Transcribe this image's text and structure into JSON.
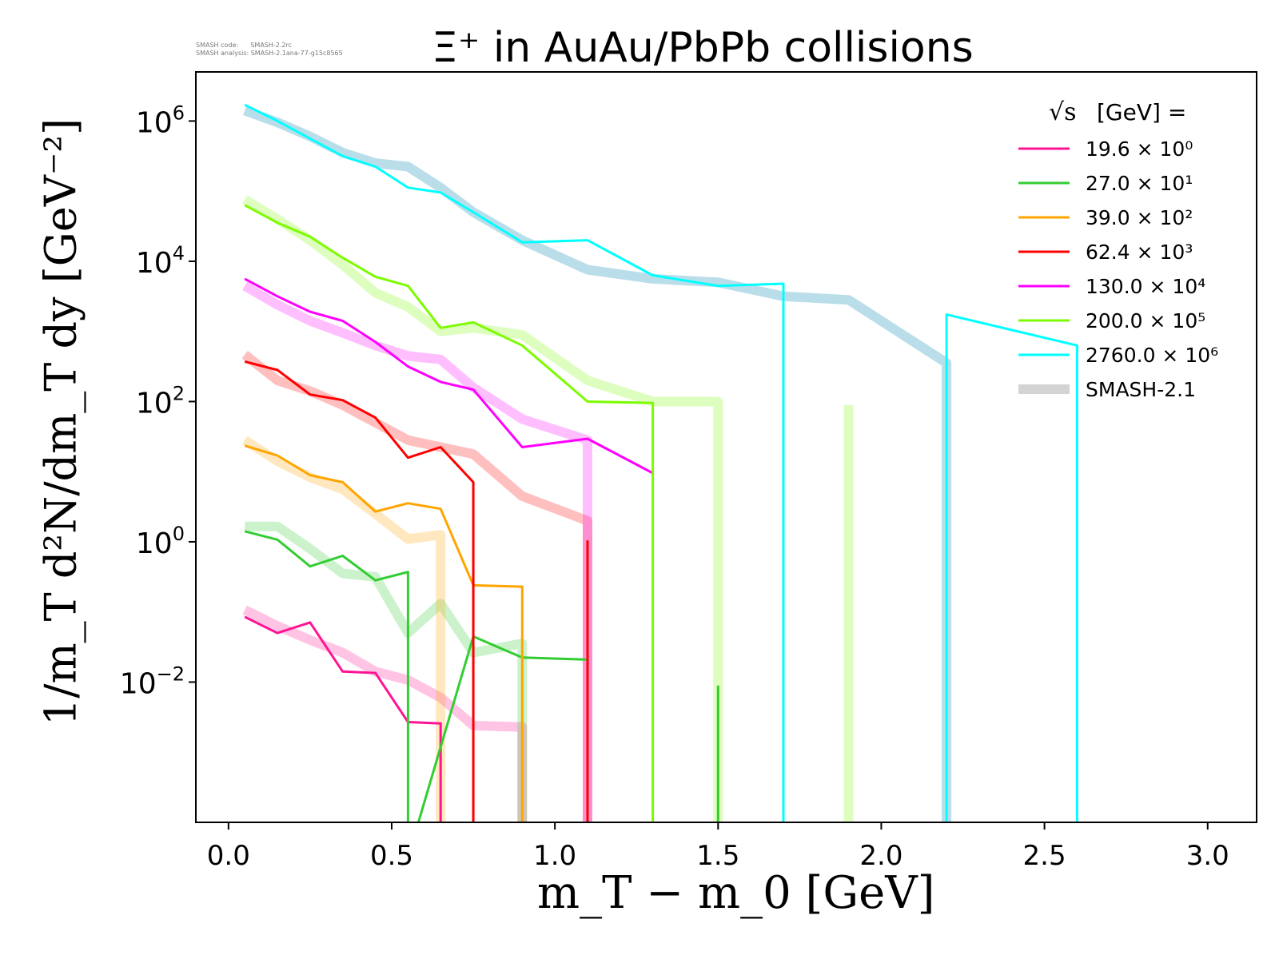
{
  "meta": {
    "line1": "SMASH code:      SMASH-2.2rc",
    "line2": "SMASH analysis: SMASH-2.1ana-77-g15c8565"
  },
  "chart_data": {
    "type": "line",
    "title": "Ξ⁺ in AuAu/PbPb collisions",
    "xlabel": "m_T − m_0 [GeV]",
    "ylabel": "1/m_T d²N/dm_T dy [GeV⁻²]",
    "xlim": [
      -0.1,
      3.15
    ],
    "ylim_log10": [
      -4.0,
      6.7
    ],
    "xticks": [
      "0.0",
      "0.5",
      "1.0",
      "1.5",
      "2.0",
      "2.5",
      "3.0"
    ],
    "yticks": [
      {
        "base": "10",
        "exp": "6",
        "value_log10": 6
      },
      {
        "base": "10",
        "exp": "4",
        "value_log10": 4
      },
      {
        "base": "10",
        "exp": "2",
        "value_log10": 2
      },
      {
        "base": "10",
        "exp": "0",
        "value_log10": 0
      },
      {
        "base": "10",
        "exp": "−2",
        "value_log10": -2
      }
    ],
    "log_y": true,
    "grid": false,
    "legend": {
      "position": "top-right",
      "title": "[GeV] =",
      "sqrt_symbol": "√s",
      "entries": [
        {
          "label": "19.6 × 10⁰",
          "color": "#ff1493"
        },
        {
          "label": "27.0 × 10¹",
          "color": "#32cd32"
        },
        {
          "label": "39.0 × 10²",
          "color": "#ffa500"
        },
        {
          "label": "62.4 × 10³",
          "color": "#ff0000"
        },
        {
          "label": "130.0 × 10⁴",
          "color": "#ff00ff"
        },
        {
          "label": "200.0 × 10⁵",
          "color": "#7cfc00"
        },
        {
          "label": "2760.0 × 10⁶",
          "color": "#00ffff"
        },
        {
          "label": "SMASH-2.1",
          "color": "#d3d3d3",
          "thick": true
        }
      ]
    },
    "series": [
      {
        "name": "19.6 × 10⁰",
        "color": "#ff1493",
        "x": [
          0.05,
          0.15,
          0.25,
          0.35,
          0.45,
          0.55,
          0.65,
          0.65
        ],
        "y": [
          -1.07,
          -1.3,
          -1.15,
          -1.85,
          -1.87,
          -2.57,
          -2.59,
          -4.5
        ]
      },
      {
        "name": "19.6 × 10⁰ SMASH-2.1",
        "color": "#ff1493",
        "smash": true,
        "x": [
          0.05,
          0.15,
          0.25,
          0.35,
          0.45,
          0.55,
          0.65,
          0.75,
          0.9,
          0.9
        ],
        "y": [
          -0.97,
          -1.2,
          -1.4,
          -1.58,
          -1.85,
          -1.97,
          -2.22,
          -2.62,
          -2.64,
          -4.5
        ]
      },
      {
        "name": "27.0 × 10¹",
        "color": "#32cd32",
        "x": [
          0.05,
          0.15,
          0.25,
          0.35,
          0.45,
          0.55,
          0.55,
          0.75,
          0.9,
          1.1
        ],
        "y": [
          0.15,
          0.03,
          -0.35,
          -0.2,
          -0.55,
          -0.43,
          -4.5,
          -1.35,
          -1.65,
          -1.68
        ]
      },
      {
        "name": "27.0 × 10¹ spike",
        "color": "#32cd32",
        "x": [
          1.5,
          1.5
        ],
        "y": [
          -4.5,
          -2.05
        ]
      },
      {
        "name": "27.0 × 10¹ SMASH-2.1",
        "color": "#32cd32",
        "smash": true,
        "x": [
          0.05,
          0.15,
          0.25,
          0.35,
          0.45,
          0.55,
          0.65,
          0.75,
          0.9,
          0.9
        ],
        "y": [
          0.22,
          0.22,
          -0.1,
          -0.45,
          -0.5,
          -1.3,
          -0.88,
          -1.58,
          -1.45,
          -4.5
        ]
      },
      {
        "name": "39.0 × 10²",
        "color": "#ffa500",
        "x": [
          0.05,
          0.15,
          0.25,
          0.35,
          0.45,
          0.55,
          0.65,
          0.75,
          0.9,
          0.9
        ],
        "y": [
          1.37,
          1.23,
          0.95,
          0.85,
          0.43,
          0.55,
          0.47,
          -0.62,
          -0.64,
          -4.5
        ]
      },
      {
        "name": "39.0 × 10² SMASH-2.1",
        "color": "#ffa500",
        "smash": true,
        "x": [
          0.05,
          0.15,
          0.25,
          0.35,
          0.45,
          0.55,
          0.65,
          0.65
        ],
        "y": [
          1.45,
          1.15,
          0.92,
          0.75,
          0.4,
          0.04,
          0.1,
          -4.5
        ]
      },
      {
        "name": "62.4 × 10³",
        "color": "#ff0000",
        "x": [
          0.05,
          0.15,
          0.25,
          0.35,
          0.45,
          0.55,
          0.65,
          0.75,
          0.75
        ],
        "y": [
          2.57,
          2.45,
          2.1,
          2.02,
          1.77,
          1.2,
          1.35,
          0.85,
          -4.5
        ]
      },
      {
        "name": "62.4 × 10³ spike",
        "color": "#ff0000",
        "x": [
          1.1,
          1.1
        ],
        "y": [
          -4.5,
          0.02
        ]
      },
      {
        "name": "62.4 × 10³ SMASH-2.1",
        "color": "#ff0000",
        "smash": true,
        "x": [
          0.05,
          0.15,
          0.25,
          0.35,
          0.45,
          0.55,
          0.65,
          0.75,
          0.9,
          1.1,
          1.1
        ],
        "y": [
          2.67,
          2.3,
          2.15,
          1.95,
          1.7,
          1.45,
          1.35,
          1.25,
          0.65,
          0.3,
          -4.5
        ]
      },
      {
        "name": "130.0 × 10⁴",
        "color": "#ff00ff",
        "x": [
          0.05,
          0.15,
          0.25,
          0.35,
          0.45,
          0.55,
          0.65,
          0.75,
          0.9,
          1.1,
          1.3
        ],
        "y": [
          3.75,
          3.5,
          3.28,
          3.15,
          2.85,
          2.5,
          2.28,
          2.17,
          1.35,
          1.47,
          0.98
        ]
      },
      {
        "name": "130.0 × 10⁴ SMASH-2.1",
        "color": "#ff00ff",
        "smash": true,
        "x": [
          0.05,
          0.15,
          0.25,
          0.35,
          0.45,
          0.55,
          0.65,
          0.75,
          0.9,
          1.1,
          1.1
        ],
        "y": [
          3.65,
          3.38,
          3.15,
          2.98,
          2.8,
          2.65,
          2.6,
          2.2,
          1.75,
          1.45,
          -4.5
        ]
      },
      {
        "name": "200.0 × 10⁵",
        "color": "#7cfc00",
        "x": [
          0.05,
          0.15,
          0.25,
          0.35,
          0.45,
          0.55,
          0.65,
          0.75,
          0.9,
          1.1,
          1.3,
          1.3
        ],
        "y": [
          4.8,
          4.55,
          4.35,
          4.05,
          3.78,
          3.65,
          3.05,
          3.13,
          2.8,
          2.0,
          1.98,
          -4.5
        ]
      },
      {
        "name": "200.0 × 10⁵ SMASH-2.1",
        "color": "#7cfc00",
        "smash": true,
        "x": [
          0.05,
          0.15,
          0.25,
          0.35,
          0.45,
          0.55,
          0.65,
          0.75,
          0.9,
          1.1,
          1.3,
          1.5,
          1.5
        ],
        "y": [
          4.88,
          4.6,
          4.3,
          3.95,
          3.55,
          3.35,
          3.0,
          3.05,
          2.95,
          2.3,
          2.0,
          2.0,
          -4.5
        ]
      },
      {
        "name": "200.0 × 10⁵ SMASH-2.1 spike",
        "color": "#7cfc00",
        "smash": true,
        "x": [
          1.9,
          1.9
        ],
        "y": [
          -4.5,
          1.95
        ]
      },
      {
        "name": "2760.0 × 10⁶",
        "color": "#00ffff",
        "x": [
          0.05,
          0.15,
          0.25,
          0.35,
          0.45,
          0.55,
          0.65,
          0.75,
          0.9,
          1.1,
          1.3,
          1.5,
          1.7,
          1.7
        ],
        "y": [
          6.23,
          6.0,
          5.75,
          5.5,
          5.35,
          5.05,
          4.98,
          4.7,
          4.27,
          4.3,
          3.8,
          3.65,
          3.68,
          -4.5
        ]
      },
      {
        "name": "2760.0 × 10⁶ tail",
        "color": "#00ffff",
        "x": [
          2.2,
          2.2,
          2.6,
          2.6
        ],
        "y": [
          -4.5,
          3.24,
          2.8,
          -4.5
        ]
      },
      {
        "name": "2760.0 × 10⁶ SMASH-2.1",
        "color": "#add8e6",
        "smash": true,
        "x": [
          0.05,
          0.15,
          0.25,
          0.35,
          0.45,
          0.55,
          0.65,
          0.75,
          0.9,
          1.1,
          1.3,
          1.5,
          1.7,
          1.9,
          2.2,
          2.2
        ],
        "y": [
          6.15,
          5.98,
          5.78,
          5.55,
          5.4,
          5.35,
          5.05,
          4.7,
          4.3,
          3.88,
          3.75,
          3.7,
          3.5,
          3.45,
          2.55,
          -4.5
        ]
      }
    ]
  }
}
